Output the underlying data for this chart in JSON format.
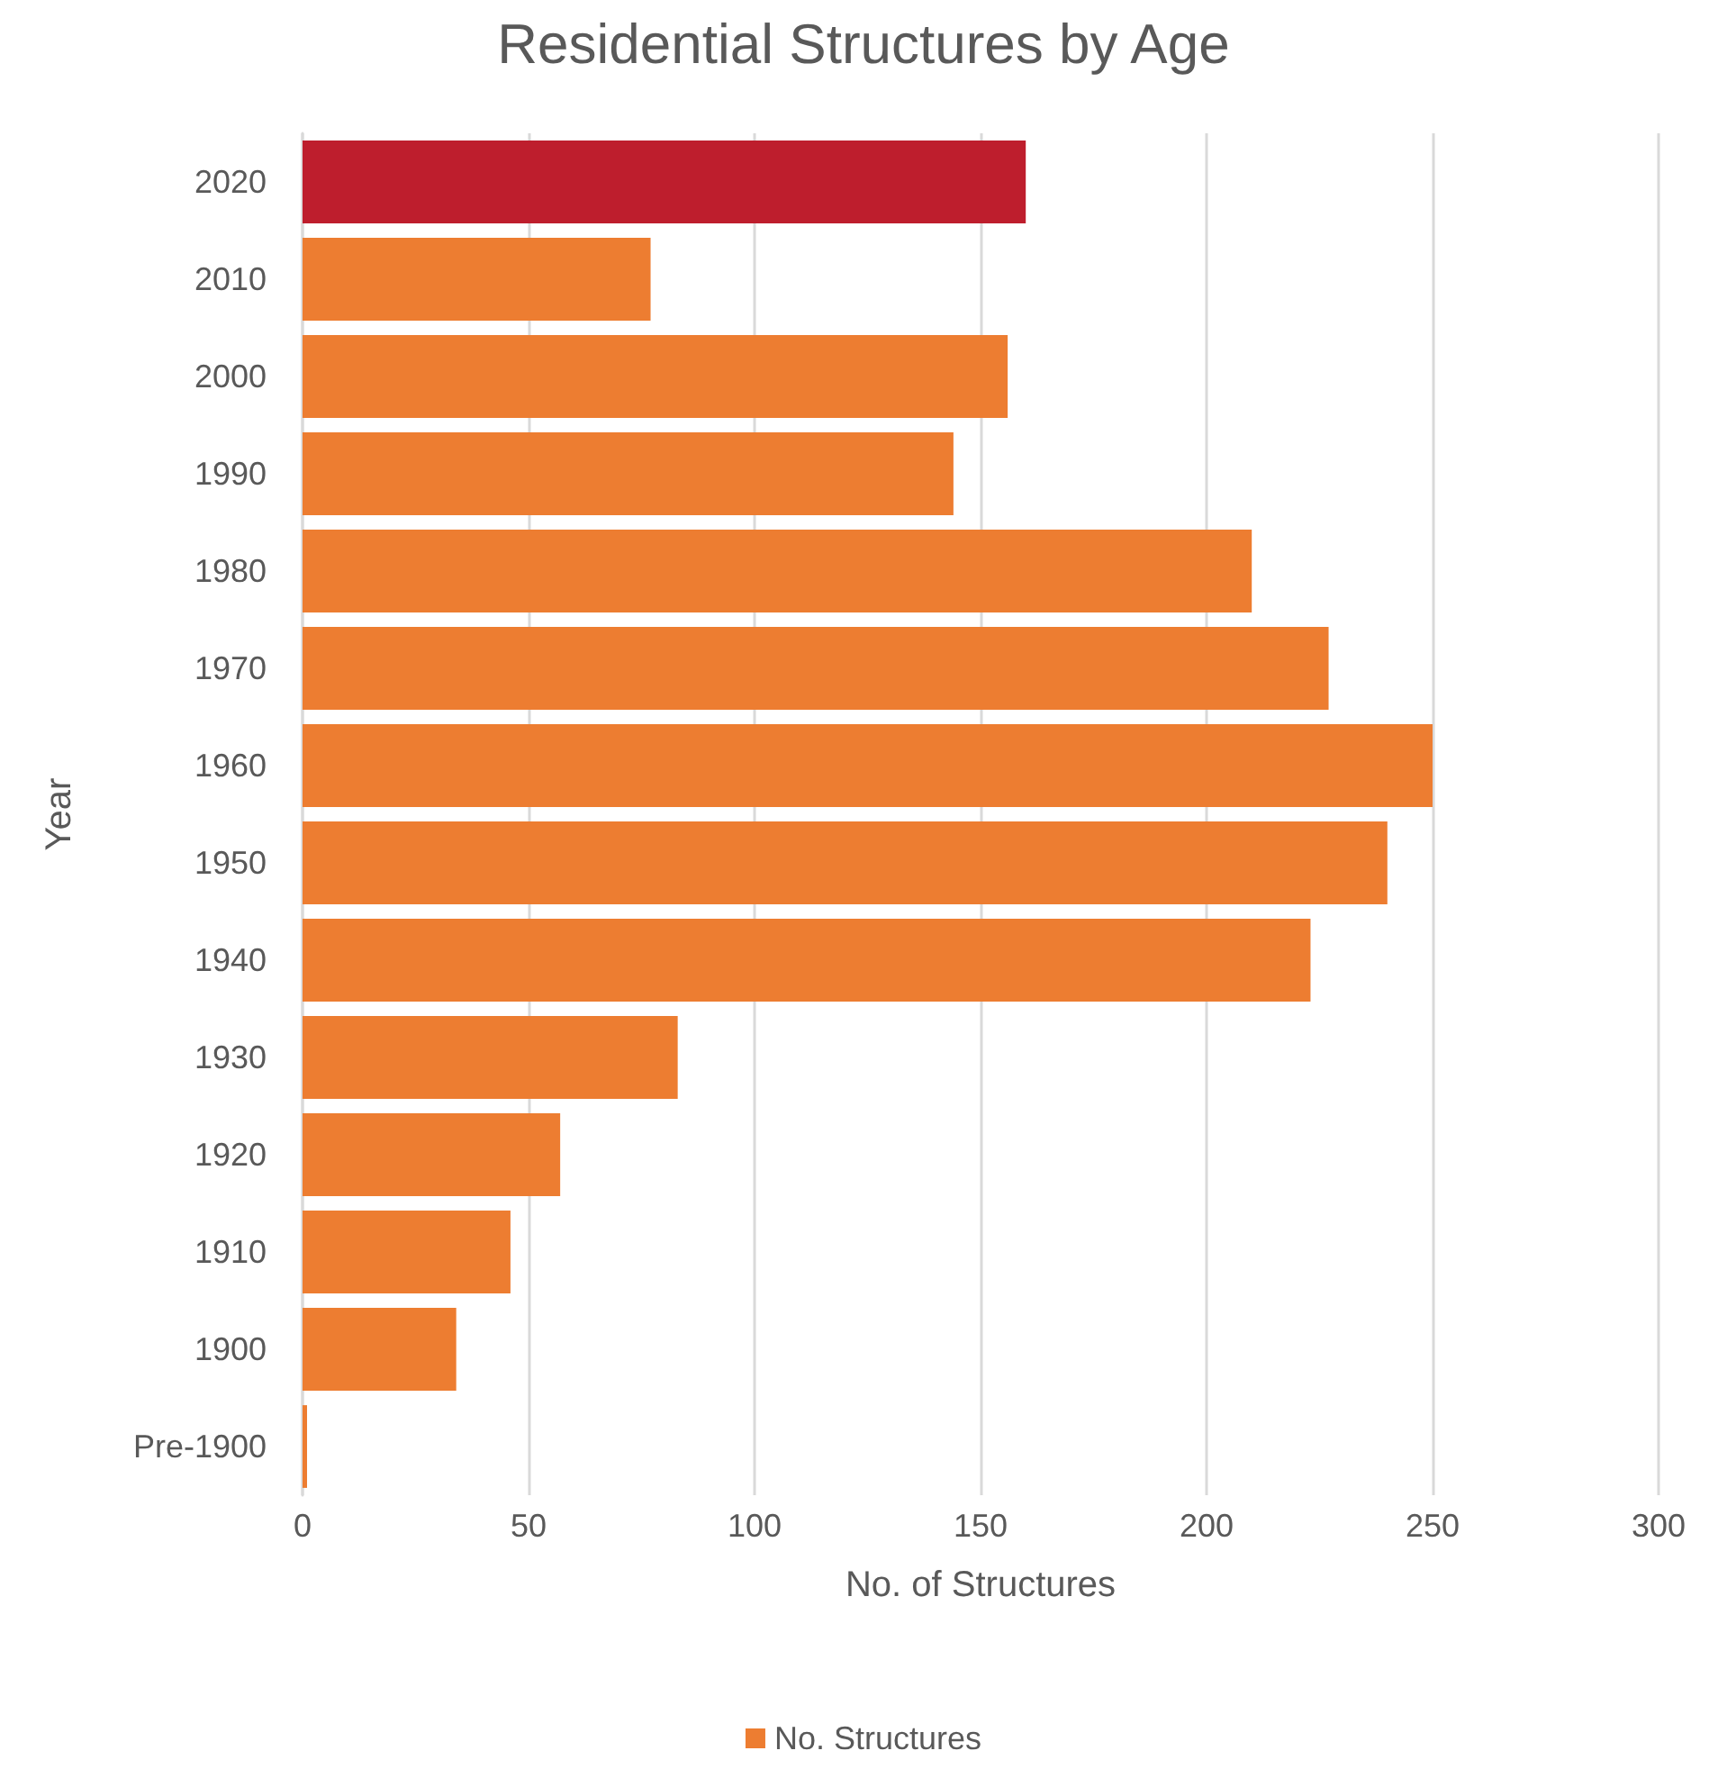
{
  "chart_data": {
    "type": "bar",
    "orientation": "horizontal",
    "title": "Residential Structures by Age",
    "xlabel": "No. of Structures",
    "ylabel": "Year",
    "categories": [
      "2020",
      "2010",
      "2000",
      "1990",
      "1980",
      "1970",
      "1960",
      "1950",
      "1940",
      "1930",
      "1920",
      "1910",
      "1900",
      "Pre-1900"
    ],
    "series": [
      {
        "name": "No. Structures",
        "color": "#ed7d31",
        "colors": [
          "#be1e2d",
          "#ed7d31",
          "#ed7d31",
          "#ed7d31",
          "#ed7d31",
          "#ed7d31",
          "#ed7d31",
          "#ed7d31",
          "#ed7d31",
          "#ed7d31",
          "#ed7d31",
          "#ed7d31",
          "#ed7d31",
          "#ed7d31"
        ],
        "values": [
          160,
          77,
          156,
          144,
          210,
          227,
          250,
          240,
          223,
          83,
          57,
          46,
          34,
          1
        ]
      }
    ],
    "xlim": [
      0,
      300
    ],
    "xticks": [
      0,
      50,
      100,
      150,
      200,
      250,
      300
    ],
    "grid": "x",
    "legend": "bottom"
  }
}
